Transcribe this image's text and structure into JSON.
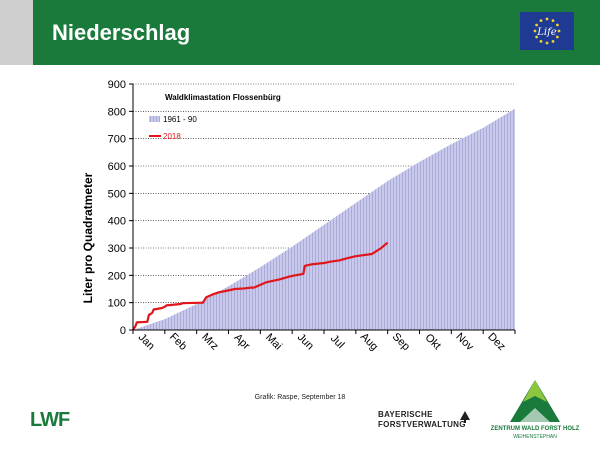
{
  "header": {
    "title": "Niederschlag",
    "eu_logo_text": "Life",
    "colors": {
      "band": "#1a7a3c",
      "left_bar": "#cfcfcf",
      "eu_blue": "#1f3a93",
      "eu_star": "#f2d22e"
    }
  },
  "chart_data": {
    "type": "area",
    "title": "Waldklimastation Flossenbürg",
    "xlabel": "",
    "ylabel": "Liter pro Quadratmeter",
    "ylim": [
      0,
      900
    ],
    "yticks": [
      0,
      100,
      200,
      300,
      400,
      500,
      600,
      700,
      800,
      900
    ],
    "categories": [
      "Jan",
      "Feb",
      "Mrz",
      "Apr",
      "Mai",
      "Jun",
      "Jul",
      "Aug",
      "Sep",
      "Okt",
      "Nov",
      "Dez"
    ],
    "grid": true,
    "legend_position": "top-left",
    "series": [
      {
        "name": "1961 - 90",
        "style": "hatched area",
        "color": "#a9a9d9",
        "x": [
          0,
          1,
          2,
          3,
          4,
          5,
          6,
          7,
          8,
          9,
          10,
          11,
          12
        ],
        "values": [
          0,
          40,
          95,
          160,
          230,
          305,
          385,
          465,
          545,
          615,
          680,
          740,
          810
        ]
      },
      {
        "name": "2018",
        "style": "line",
        "color": "#e0161b",
        "x": [
          0,
          0.08,
          0.12,
          0.45,
          0.5,
          0.6,
          0.65,
          0.9,
          1.0,
          1.05,
          1.5,
          1.55,
          2.2,
          2.3,
          2.5,
          2.7,
          3.0,
          3.2,
          3.5,
          3.7,
          3.8,
          4.1,
          4.2,
          4.4,
          4.6,
          4.9,
          5.0,
          5.1,
          5.35,
          5.4,
          5.6,
          6.0,
          6.2,
          6.5,
          6.7,
          7.0,
          7.5,
          7.6,
          7.8,
          8.0
        ],
        "values": [
          0,
          15,
          28,
          30,
          55,
          62,
          75,
          80,
          85,
          90,
          95,
          98,
          100,
          120,
          130,
          138,
          145,
          150,
          152,
          155,
          155,
          170,
          175,
          180,
          185,
          195,
          198,
          200,
          205,
          235,
          240,
          245,
          250,
          255,
          262,
          270,
          278,
          285,
          300,
          320
        ]
      }
    ]
  },
  "credit": "Grafik: Raspe, September 18",
  "logos": {
    "lwf": "LWF",
    "bayern_line1": "BAYERISCHE",
    "bayern_line2": "FORSTVERWALTUNG",
    "zwfh_line1": "ZENTRUM WALD FORST HOLZ",
    "zwfh_line2": "WEIHENSTEPHAN"
  }
}
